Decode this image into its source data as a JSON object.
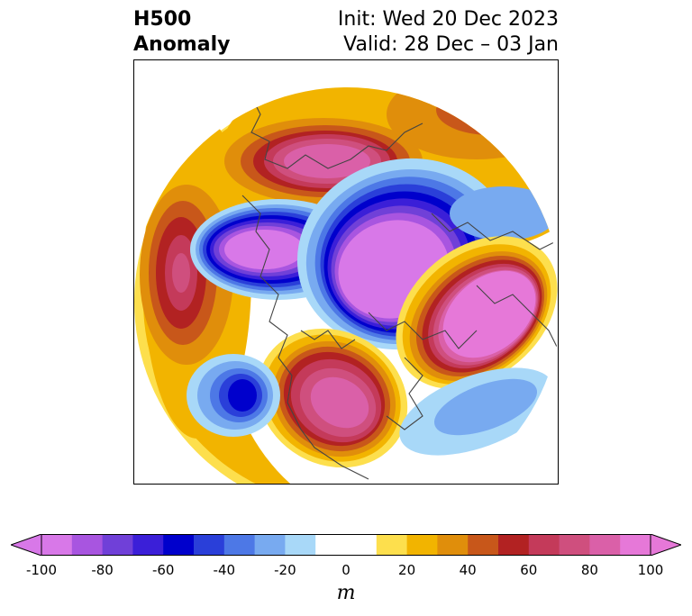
{
  "title": {
    "left_line1": "H500",
    "left_line2": "Anomaly",
    "right_line1": "Init: Wed 20 Dec 2023",
    "right_line2": "Valid: 28 Dec – 03 Jan"
  },
  "map": {
    "projection": "north-polar-stereographic",
    "features": [
      {
        "name": "ridge-north-pacific",
        "sign": "positive",
        "peak_m": 80
      },
      {
        "name": "ridge-eastern-siberia",
        "sign": "positive",
        "peak_m": 90
      },
      {
        "name": "trough-western-arctic",
        "sign": "negative",
        "peak_m": -100
      },
      {
        "name": "trough-eurasian-arctic",
        "sign": "negative",
        "peak_m": -100
      },
      {
        "name": "ridge-north-america",
        "sign": "positive",
        "peak_m": 90
      },
      {
        "name": "ridge-north-atlantic-europe",
        "sign": "positive",
        "peak_m": 100
      },
      {
        "name": "trough-eastern-pacific",
        "sign": "negative",
        "peak_m": -60
      },
      {
        "name": "trough-subtropical-atlantic",
        "sign": "negative",
        "peak_m": -30
      }
    ]
  },
  "colorbar": {
    "units": "m",
    "levels": [
      -100,
      -90,
      -80,
      -70,
      -60,
      -50,
      -40,
      -30,
      -20,
      -10,
      10,
      20,
      30,
      40,
      50,
      60,
      70,
      80,
      90,
      100
    ],
    "colors": [
      "#d878e8",
      "#a855e0",
      "#7040d8",
      "#3b1fd8",
      "#0000cc",
      "#2a3fd9",
      "#4d78e6",
      "#78aaf0",
      "#a8d8f8",
      "#ffffff",
      "#fddf4d",
      "#f2b400",
      "#e08e0b",
      "#c8571a",
      "#b22222",
      "#c43a5a",
      "#cf4f7e",
      "#da60a8",
      "#e678d8"
    ],
    "extend_min_color": "#d878e8",
    "extend_max_color": "#e678d8",
    "tick_labels": [
      "-100",
      "-80",
      "-60",
      "-40",
      "-20",
      "0",
      "20",
      "40",
      "60",
      "80",
      "100"
    ],
    "tick_values": [
      -100,
      -80,
      -60,
      -40,
      -20,
      0,
      20,
      40,
      60,
      80,
      100
    ]
  }
}
